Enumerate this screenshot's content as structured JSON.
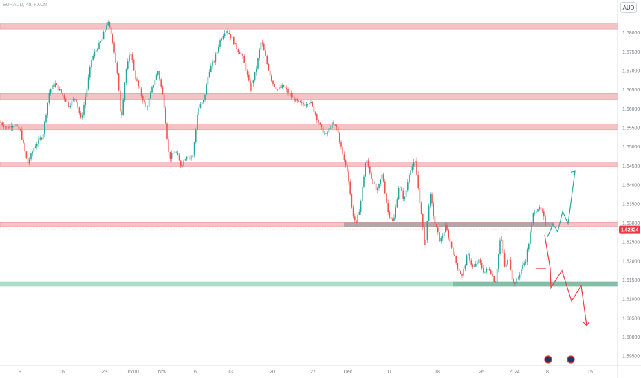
{
  "header": {
    "symbol_title": "EURAUD, 4h, FXCM",
    "currency_button": "AUD"
  },
  "chart_data": {
    "type": "candlestick",
    "symbol": "EURAUD",
    "timeframe": "4h",
    "source": "FXCM",
    "ylim": [
      1.5925,
      1.685
    ],
    "y_ticks": [
      "1.68000",
      "1.67500",
      "1.67000",
      "1.66500",
      "1.66000",
      "1.65500",
      "1.65000",
      "1.64500",
      "1.64000",
      "1.63500",
      "1.63000",
      "1.62500",
      "1.62000",
      "1.61500",
      "1.61000",
      "1.60500",
      "1.60000",
      "1.59500"
    ],
    "x_ticks": [
      "9",
      "16",
      "23",
      "15:00",
      "Nov",
      "6",
      "13",
      "20",
      "27",
      "Dec",
      "11",
      "18",
      "26",
      "2024",
      "8",
      "15"
    ],
    "current_price": "1.62824",
    "colors": {
      "up": "#26a69a",
      "down": "#ef5350",
      "zone_red": "#f2b8bb",
      "zone_green": "#a8dec8",
      "zone_grey": "#9e9e9e",
      "price_tag": "#f23645"
    },
    "resistance_zones": [
      {
        "low": 1.681,
        "high": 1.6825
      },
      {
        "low": 1.6625,
        "high": 1.664
      },
      {
        "low": 1.6545,
        "high": 1.656
      },
      {
        "low": 1.6448,
        "high": 1.6461
      },
      {
        "low": 1.629,
        "high": 1.6302
      }
    ],
    "support_zone": {
      "low": 1.6134,
      "high": 1.6146
    },
    "projection_up": [
      1.6263,
      1.6297,
      1.6277,
      1.633,
      1.6298,
      1.6436
    ],
    "projection_down": [
      1.6268,
      1.618,
      1.613,
      1.6175,
      1.6095,
      1.6135,
      1.603
    ]
  }
}
